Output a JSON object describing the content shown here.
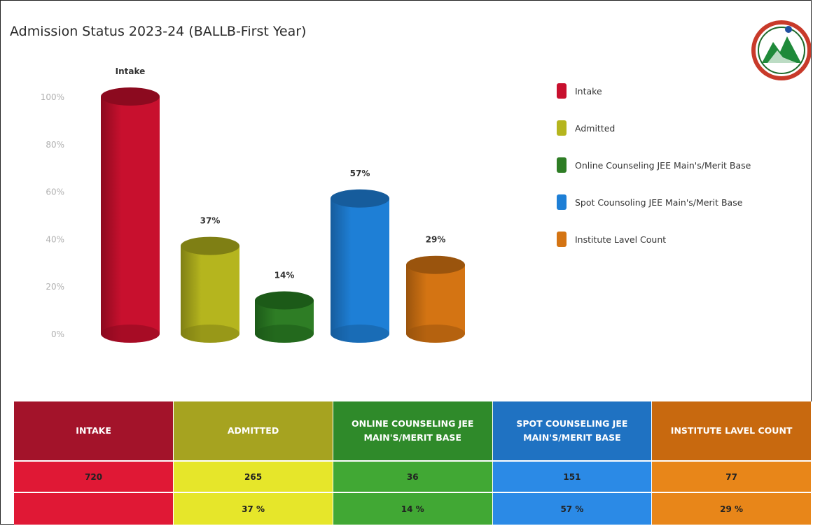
{
  "header": {
    "title": "Admission Status 2023-24 (BALLB-First Year)"
  },
  "chart_data": {
    "type": "bar",
    "style": "3d-cylinder",
    "categories": [
      "Intake",
      "Admitted",
      "Online Counseling JEE Main's/Merit Base",
      "Spot Counsoling JEE Main's/Merit Base",
      "Institute Lavel Count"
    ],
    "values": [
      100,
      37,
      14,
      57,
      29
    ],
    "data_labels": [
      "Intake",
      "37%",
      "14%",
      "57%",
      "29%"
    ],
    "colors": [
      "#c8102e",
      "#b5b51e",
      "#2e7d25",
      "#1e7fd6",
      "#d47413"
    ],
    "top_colors": [
      "#8c0a1f",
      "#7f7f14",
      "#1c5a18",
      "#165c9c",
      "#9a540d"
    ],
    "y_ticks": [
      "0%",
      "20%",
      "40%",
      "60%",
      "80%",
      "100%"
    ],
    "ylim": [
      0,
      100
    ],
    "grid": false,
    "legend_position": "right",
    "legend": [
      "Intake",
      "Admitted",
      "Online Counseling JEE Main's/Merit Base",
      "Spot Counsoling JEE Main's/Merit Base",
      "Institute Lavel Count"
    ]
  },
  "table": {
    "headers": [
      "INTAKE",
      "ADMITTED",
      "ONLINE COUNSELING JEE MAIN'S/MERIT BASE",
      "SPOT COUNSELING JEE MAIN'S/MERIT BASE",
      "INSTITUTE LAVEL COUNT"
    ],
    "header_colors": [
      "#a3132a",
      "#a6a320",
      "#2f8a2a",
      "#1f72c2",
      "#c8690f"
    ],
    "row_colors": [
      "#e01835",
      "#e6e62a",
      "#41a834",
      "#2b8ae6",
      "#e88619"
    ],
    "counts": [
      "720",
      "265",
      "36",
      "151",
      "77"
    ],
    "percents": [
      "",
      "37 %",
      "14 %",
      "57 %",
      "29 %"
    ]
  },
  "logo": {
    "icon": "institute-emblem"
  }
}
